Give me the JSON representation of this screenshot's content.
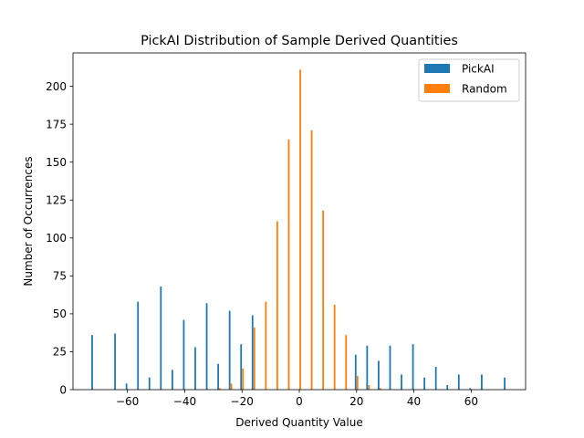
{
  "chart_data": {
    "type": "bar",
    "title": "PickAI Distribution of Sample Derived Quantities",
    "xlabel": "Derived Quantity Value",
    "ylabel": "Number of Occurrences",
    "xlim": [
      -79,
      79
    ],
    "ylim": [
      0,
      222
    ],
    "xticks": [
      -60,
      -40,
      -20,
      0,
      20,
      40,
      60
    ],
    "xtick_labels": [
      "−60",
      "−40",
      "−20",
      "0",
      "20",
      "40",
      "60"
    ],
    "yticks": [
      0,
      25,
      50,
      75,
      100,
      125,
      150,
      175,
      200
    ],
    "yticks_labels": [
      "0",
      "25",
      "50",
      "75",
      "100",
      "125",
      "150",
      "175",
      "200"
    ],
    "grid": false,
    "legend_position": "top-right",
    "series": [
      {
        "name": "PickAI",
        "color": "#1f77b4",
        "x": [
          -72,
          -64,
          -60,
          -56,
          -52,
          -48,
          -44,
          -40,
          -36,
          -32,
          -28,
          -24,
          -20,
          -16,
          20,
          24,
          28,
          32,
          36,
          40,
          44,
          48,
          52,
          56,
          60,
          64,
          72
        ],
        "values": [
          36,
          37,
          4,
          58,
          8,
          68,
          13,
          46,
          28,
          57,
          17,
          52,
          30,
          49,
          23,
          29,
          19,
          29,
          10,
          30,
          8,
          15,
          3,
          10,
          1,
          10,
          8
        ]
      },
      {
        "name": "Random",
        "color": "#ff7f0e",
        "x": [
          -28,
          -24,
          -20,
          -16,
          -12,
          -8,
          -4,
          0,
          4,
          8,
          12,
          16,
          20,
          24,
          28
        ],
        "values": [
          1,
          4,
          14,
          41,
          58,
          111,
          165,
          211,
          171,
          118,
          56,
          36,
          9,
          3,
          1
        ]
      }
    ]
  }
}
